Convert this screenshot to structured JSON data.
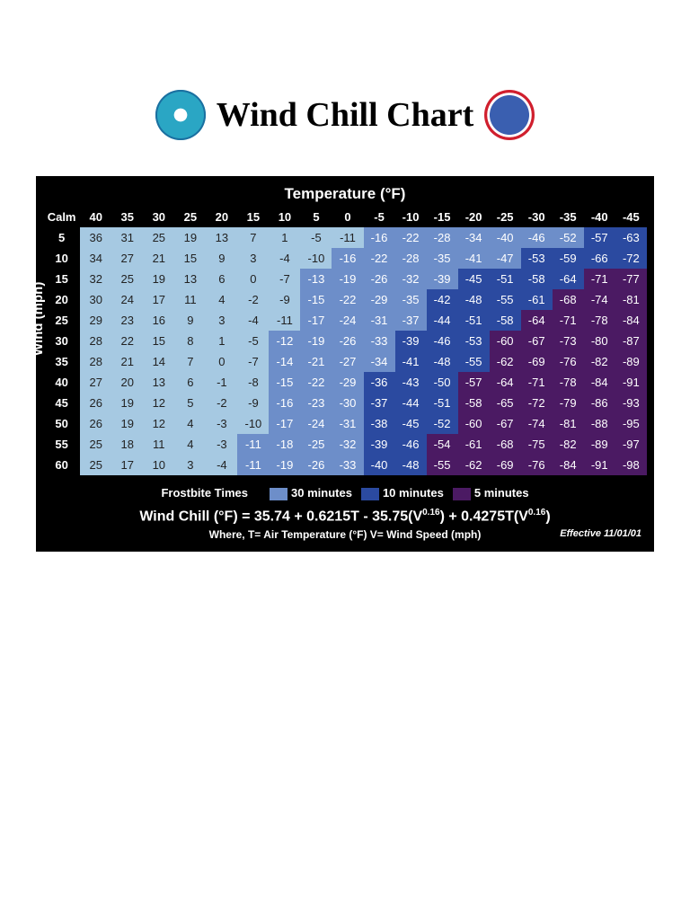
{
  "title": "Wind Chill Chart",
  "axis_top_label": "Temperature (°F)",
  "axis_left_label": "Wind (mph)",
  "calm_label": "Calm",
  "temps": [
    "40",
    "35",
    "30",
    "25",
    "20",
    "15",
    "10",
    "5",
    "0",
    "-5",
    "-10",
    "-15",
    "-20",
    "-25",
    "-30",
    "-35",
    "-40",
    "-45"
  ],
  "winds": [
    "5",
    "10",
    "15",
    "20",
    "25",
    "30",
    "35",
    "40",
    "45",
    "50",
    "55",
    "60"
  ],
  "cells": [
    [
      {
        "v": "36",
        "z": 0
      },
      {
        "v": "31",
        "z": 0
      },
      {
        "v": "25",
        "z": 0
      },
      {
        "v": "19",
        "z": 0
      },
      {
        "v": "13",
        "z": 0
      },
      {
        "v": "7",
        "z": 0
      },
      {
        "v": "1",
        "z": 0
      },
      {
        "v": "-5",
        "z": 0
      },
      {
        "v": "-11",
        "z": 0
      },
      {
        "v": "-16",
        "z": 1
      },
      {
        "v": "-22",
        "z": 1
      },
      {
        "v": "-28",
        "z": 1
      },
      {
        "v": "-34",
        "z": 1
      },
      {
        "v": "-40",
        "z": 1
      },
      {
        "v": "-46",
        "z": 1
      },
      {
        "v": "-52",
        "z": 1
      },
      {
        "v": "-57",
        "z": 2
      },
      {
        "v": "-63",
        "z": 2
      }
    ],
    [
      {
        "v": "34",
        "z": 0
      },
      {
        "v": "27",
        "z": 0
      },
      {
        "v": "21",
        "z": 0
      },
      {
        "v": "15",
        "z": 0
      },
      {
        "v": "9",
        "z": 0
      },
      {
        "v": "3",
        "z": 0
      },
      {
        "v": "-4",
        "z": 0
      },
      {
        "v": "-10",
        "z": 0
      },
      {
        "v": "-16",
        "z": 1
      },
      {
        "v": "-22",
        "z": 1
      },
      {
        "v": "-28",
        "z": 1
      },
      {
        "v": "-35",
        "z": 1
      },
      {
        "v": "-41",
        "z": 1
      },
      {
        "v": "-47",
        "z": 1
      },
      {
        "v": "-53",
        "z": 2
      },
      {
        "v": "-59",
        "z": 2
      },
      {
        "v": "-66",
        "z": 2
      },
      {
        "v": "-72",
        "z": 2
      }
    ],
    [
      {
        "v": "32",
        "z": 0
      },
      {
        "v": "25",
        "z": 0
      },
      {
        "v": "19",
        "z": 0
      },
      {
        "v": "13",
        "z": 0
      },
      {
        "v": "6",
        "z": 0
      },
      {
        "v": "0",
        "z": 0
      },
      {
        "v": "-7",
        "z": 0
      },
      {
        "v": "-13",
        "z": 1
      },
      {
        "v": "-19",
        "z": 1
      },
      {
        "v": "-26",
        "z": 1
      },
      {
        "v": "-32",
        "z": 1
      },
      {
        "v": "-39",
        "z": 1
      },
      {
        "v": "-45",
        "z": 2
      },
      {
        "v": "-51",
        "z": 2
      },
      {
        "v": "-58",
        "z": 2
      },
      {
        "v": "-64",
        "z": 2
      },
      {
        "v": "-71",
        "z": 3
      },
      {
        "v": "-77",
        "z": 3
      }
    ],
    [
      {
        "v": "30",
        "z": 0
      },
      {
        "v": "24",
        "z": 0
      },
      {
        "v": "17",
        "z": 0
      },
      {
        "v": "11",
        "z": 0
      },
      {
        "v": "4",
        "z": 0
      },
      {
        "v": "-2",
        "z": 0
      },
      {
        "v": "-9",
        "z": 0
      },
      {
        "v": "-15",
        "z": 1
      },
      {
        "v": "-22",
        "z": 1
      },
      {
        "v": "-29",
        "z": 1
      },
      {
        "v": "-35",
        "z": 1
      },
      {
        "v": "-42",
        "z": 2
      },
      {
        "v": "-48",
        "z": 2
      },
      {
        "v": "-55",
        "z": 2
      },
      {
        "v": "-61",
        "z": 2
      },
      {
        "v": "-68",
        "z": 3
      },
      {
        "v": "-74",
        "z": 3
      },
      {
        "v": "-81",
        "z": 3
      }
    ],
    [
      {
        "v": "29",
        "z": 0
      },
      {
        "v": "23",
        "z": 0
      },
      {
        "v": "16",
        "z": 0
      },
      {
        "v": "9",
        "z": 0
      },
      {
        "v": "3",
        "z": 0
      },
      {
        "v": "-4",
        "z": 0
      },
      {
        "v": "-11",
        "z": 0
      },
      {
        "v": "-17",
        "z": 1
      },
      {
        "v": "-24",
        "z": 1
      },
      {
        "v": "-31",
        "z": 1
      },
      {
        "v": "-37",
        "z": 1
      },
      {
        "v": "-44",
        "z": 2
      },
      {
        "v": "-51",
        "z": 2
      },
      {
        "v": "-58",
        "z": 2
      },
      {
        "v": "-64",
        "z": 3
      },
      {
        "v": "-71",
        "z": 3
      },
      {
        "v": "-78",
        "z": 3
      },
      {
        "v": "-84",
        "z": 3
      }
    ],
    [
      {
        "v": "28",
        "z": 0
      },
      {
        "v": "22",
        "z": 0
      },
      {
        "v": "15",
        "z": 0
      },
      {
        "v": "8",
        "z": 0
      },
      {
        "v": "1",
        "z": 0
      },
      {
        "v": "-5",
        "z": 0
      },
      {
        "v": "-12",
        "z": 1
      },
      {
        "v": "-19",
        "z": 1
      },
      {
        "v": "-26",
        "z": 1
      },
      {
        "v": "-33",
        "z": 1
      },
      {
        "v": "-39",
        "z": 2
      },
      {
        "v": "-46",
        "z": 2
      },
      {
        "v": "-53",
        "z": 2
      },
      {
        "v": "-60",
        "z": 3
      },
      {
        "v": "-67",
        "z": 3
      },
      {
        "v": "-73",
        "z": 3
      },
      {
        "v": "-80",
        "z": 3
      },
      {
        "v": "-87",
        "z": 3
      }
    ],
    [
      {
        "v": "28",
        "z": 0
      },
      {
        "v": "21",
        "z": 0
      },
      {
        "v": "14",
        "z": 0
      },
      {
        "v": "7",
        "z": 0
      },
      {
        "v": "0",
        "z": 0
      },
      {
        "v": "-7",
        "z": 0
      },
      {
        "v": "-14",
        "z": 1
      },
      {
        "v": "-21",
        "z": 1
      },
      {
        "v": "-27",
        "z": 1
      },
      {
        "v": "-34",
        "z": 1
      },
      {
        "v": "-41",
        "z": 2
      },
      {
        "v": "-48",
        "z": 2
      },
      {
        "v": "-55",
        "z": 2
      },
      {
        "v": "-62",
        "z": 3
      },
      {
        "v": "-69",
        "z": 3
      },
      {
        "v": "-76",
        "z": 3
      },
      {
        "v": "-82",
        "z": 3
      },
      {
        "v": "-89",
        "z": 3
      }
    ],
    [
      {
        "v": "27",
        "z": 0
      },
      {
        "v": "20",
        "z": 0
      },
      {
        "v": "13",
        "z": 0
      },
      {
        "v": "6",
        "z": 0
      },
      {
        "v": "-1",
        "z": 0
      },
      {
        "v": "-8",
        "z": 0
      },
      {
        "v": "-15",
        "z": 1
      },
      {
        "v": "-22",
        "z": 1
      },
      {
        "v": "-29",
        "z": 1
      },
      {
        "v": "-36",
        "z": 2
      },
      {
        "v": "-43",
        "z": 2
      },
      {
        "v": "-50",
        "z": 2
      },
      {
        "v": "-57",
        "z": 3
      },
      {
        "v": "-64",
        "z": 3
      },
      {
        "v": "-71",
        "z": 3
      },
      {
        "v": "-78",
        "z": 3
      },
      {
        "v": "-84",
        "z": 3
      },
      {
        "v": "-91",
        "z": 3
      }
    ],
    [
      {
        "v": "26",
        "z": 0
      },
      {
        "v": "19",
        "z": 0
      },
      {
        "v": "12",
        "z": 0
      },
      {
        "v": "5",
        "z": 0
      },
      {
        "v": "-2",
        "z": 0
      },
      {
        "v": "-9",
        "z": 0
      },
      {
        "v": "-16",
        "z": 1
      },
      {
        "v": "-23",
        "z": 1
      },
      {
        "v": "-30",
        "z": 1
      },
      {
        "v": "-37",
        "z": 2
      },
      {
        "v": "-44",
        "z": 2
      },
      {
        "v": "-51",
        "z": 2
      },
      {
        "v": "-58",
        "z": 3
      },
      {
        "v": "-65",
        "z": 3
      },
      {
        "v": "-72",
        "z": 3
      },
      {
        "v": "-79",
        "z": 3
      },
      {
        "v": "-86",
        "z": 3
      },
      {
        "v": "-93",
        "z": 3
      }
    ],
    [
      {
        "v": "26",
        "z": 0
      },
      {
        "v": "19",
        "z": 0
      },
      {
        "v": "12",
        "z": 0
      },
      {
        "v": "4",
        "z": 0
      },
      {
        "v": "-3",
        "z": 0
      },
      {
        "v": "-10",
        "z": 0
      },
      {
        "v": "-17",
        "z": 1
      },
      {
        "v": "-24",
        "z": 1
      },
      {
        "v": "-31",
        "z": 1
      },
      {
        "v": "-38",
        "z": 2
      },
      {
        "v": "-45",
        "z": 2
      },
      {
        "v": "-52",
        "z": 2
      },
      {
        "v": "-60",
        "z": 3
      },
      {
        "v": "-67",
        "z": 3
      },
      {
        "v": "-74",
        "z": 3
      },
      {
        "v": "-81",
        "z": 3
      },
      {
        "v": "-88",
        "z": 3
      },
      {
        "v": "-95",
        "z": 3
      }
    ],
    [
      {
        "v": "25",
        "z": 0
      },
      {
        "v": "18",
        "z": 0
      },
      {
        "v": "11",
        "z": 0
      },
      {
        "v": "4",
        "z": 0
      },
      {
        "v": "-3",
        "z": 0
      },
      {
        "v": "-11",
        "z": 1
      },
      {
        "v": "-18",
        "z": 1
      },
      {
        "v": "-25",
        "z": 1
      },
      {
        "v": "-32",
        "z": 1
      },
      {
        "v": "-39",
        "z": 2
      },
      {
        "v": "-46",
        "z": 2
      },
      {
        "v": "-54",
        "z": 3
      },
      {
        "v": "-61",
        "z": 3
      },
      {
        "v": "-68",
        "z": 3
      },
      {
        "v": "-75",
        "z": 3
      },
      {
        "v": "-82",
        "z": 3
      },
      {
        "v": "-89",
        "z": 3
      },
      {
        "v": "-97",
        "z": 3
      }
    ],
    [
      {
        "v": "25",
        "z": 0
      },
      {
        "v": "17",
        "z": 0
      },
      {
        "v": "10",
        "z": 0
      },
      {
        "v": "3",
        "z": 0
      },
      {
        "v": "-4",
        "z": 0
      },
      {
        "v": "-11",
        "z": 1
      },
      {
        "v": "-19",
        "z": 1
      },
      {
        "v": "-26",
        "z": 1
      },
      {
        "v": "-33",
        "z": 1
      },
      {
        "v": "-40",
        "z": 2
      },
      {
        "v": "-48",
        "z": 2
      },
      {
        "v": "-55",
        "z": 3
      },
      {
        "v": "-62",
        "z": 3
      },
      {
        "v": "-69",
        "z": 3
      },
      {
        "v": "-76",
        "z": 3
      },
      {
        "v": "-84",
        "z": 3
      },
      {
        "v": "-91",
        "z": 3
      },
      {
        "v": "-98",
        "z": 3
      }
    ]
  ],
  "zone_colors": {
    "0": "#a6c9e2",
    "1": "#6d8ec9",
    "2": "#2b4aa0",
    "3": "#4b1a63"
  },
  "legend": {
    "title": "Frostbite Times",
    "items": [
      {
        "label": "30 minutes",
        "color": "#6d8ec9"
      },
      {
        "label": "10 minutes",
        "color": "#2b4aa0"
      },
      {
        "label": "5 minutes",
        "color": "#4b1a63"
      }
    ]
  },
  "formula_prefix": "Wind Chill (°F) = 35.74 + 0.6215T - 35.75(V",
  "formula_exp1": "0.16",
  "formula_mid": ") + 0.4275T(V",
  "formula_exp2": "0.16",
  "formula_suffix": ")",
  "where": "Where, T= Air Temperature (°F)   V= Wind Speed (mph)",
  "effective": "Effective 11/01/01",
  "logo_left": {
    "bg": "#2aa6c4",
    "inner": "#ffffff"
  },
  "logo_right": {
    "ring": "#d01f2e",
    "inner": "#3a5fb0"
  }
}
